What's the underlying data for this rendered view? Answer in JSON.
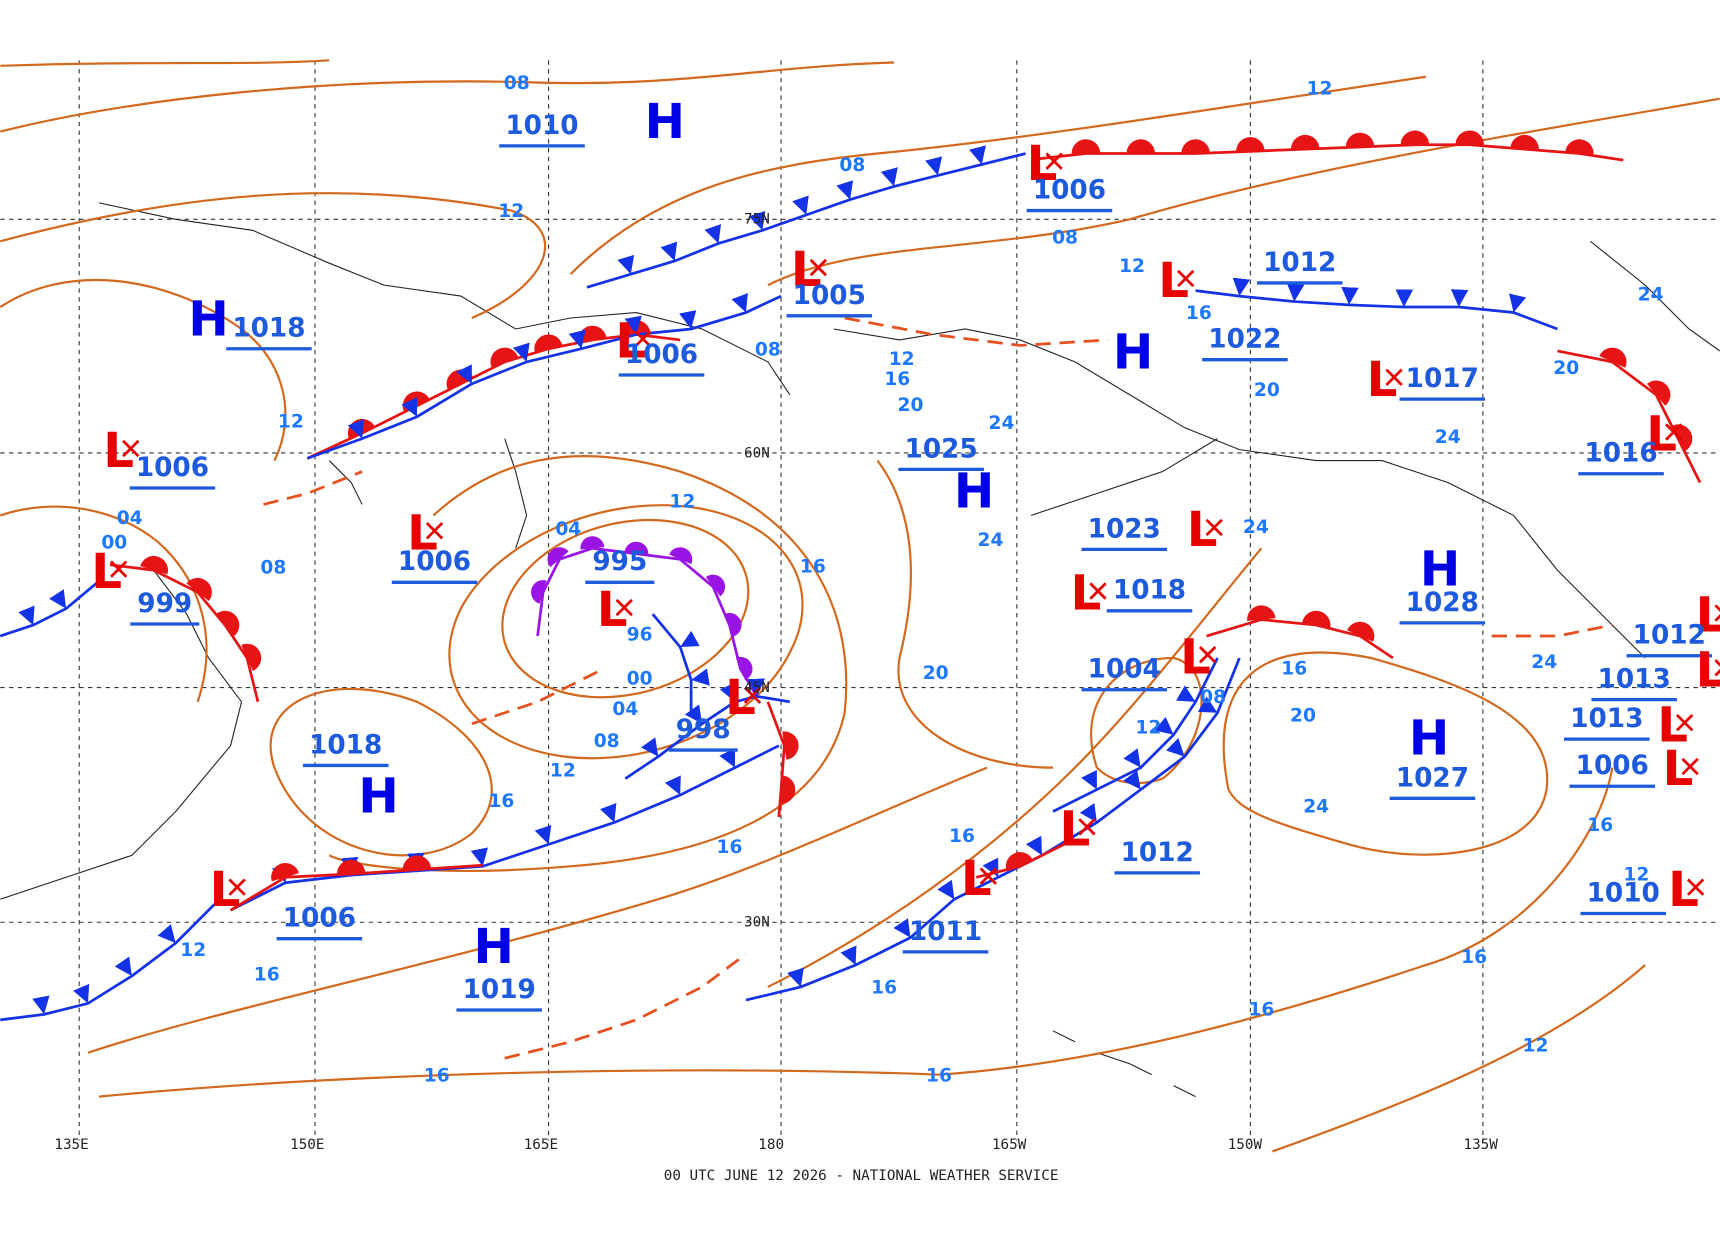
{
  "map": {
    "highs": [
      {
        "symbol": "H",
        "pressure": "1010"
      },
      {
        "symbol": "H",
        "pressure": "1018"
      },
      {
        "symbol": "H",
        "pressure": "1018"
      },
      {
        "symbol": "H",
        "pressure": "1019"
      },
      {
        "symbol": "H",
        "pressure": "1025"
      },
      {
        "symbol": "H",
        "pressure": "1022"
      },
      {
        "symbol": "H",
        "pressure": "1028"
      },
      {
        "symbol": "H",
        "pressure": "1027"
      }
    ],
    "lows": [
      {
        "symbol": "L",
        "pressure": "1006"
      },
      {
        "symbol": "L",
        "pressure": "1012"
      },
      {
        "symbol": "L",
        "pressure": "1005"
      },
      {
        "symbol": "L",
        "pressure": "1006"
      },
      {
        "symbol": "L",
        "pressure": "1006"
      },
      {
        "symbol": "L",
        "pressure": "999"
      },
      {
        "symbol": "L",
        "pressure": "1006"
      },
      {
        "symbol": "L",
        "pressure": "995"
      },
      {
        "symbol": "L",
        "pressure": "998"
      },
      {
        "symbol": "L",
        "pressure": "1017"
      },
      {
        "symbol": "L",
        "pressure": "1023"
      },
      {
        "symbol": "L",
        "pressure": "1018"
      },
      {
        "symbol": "L",
        "pressure": "1004"
      },
      {
        "symbol": "L",
        "pressure": "1012"
      },
      {
        "symbol": "L",
        "pressure": "1011"
      },
      {
        "symbol": "L",
        "pressure": "1006"
      },
      {
        "symbol": "L",
        "pressure": "1016"
      },
      {
        "symbol": "L",
        "pressure": "1010"
      },
      {
        "symbol": "L",
        "pressure": "1012"
      },
      {
        "symbol": "L",
        "pressure": "1013"
      },
      {
        "symbol": "L",
        "pressure": "1013"
      },
      {
        "symbol": "L",
        "pressure": "1006"
      }
    ],
    "isobar_labels": [
      "08",
      "12",
      "08",
      "12",
      "08",
      "12",
      "16",
      "12",
      "08",
      "12",
      "16",
      "20",
      "24",
      "20",
      "20",
      "24",
      "24",
      "04",
      "00",
      "08",
      "12",
      "04",
      "16",
      "24",
      "24",
      "96",
      "00",
      "04",
      "08",
      "12",
      "16",
      "16",
      "20",
      "08",
      "12",
      "16",
      "20",
      "24",
      "24",
      "16",
      "12",
      "16",
      "16",
      "16",
      "16",
      "16",
      "12",
      "12",
      "16",
      "16"
    ],
    "latitude_labels": [
      "75N",
      "60N",
      "45N",
      "30N"
    ],
    "longitude_labels": [
      "135E",
      "150E",
      "165E",
      "180",
      "165W",
      "150W",
      "135W"
    ],
    "footer": "00 UTC JUNE 12 2026 - NATIONAL WEATHER SERVICE"
  }
}
